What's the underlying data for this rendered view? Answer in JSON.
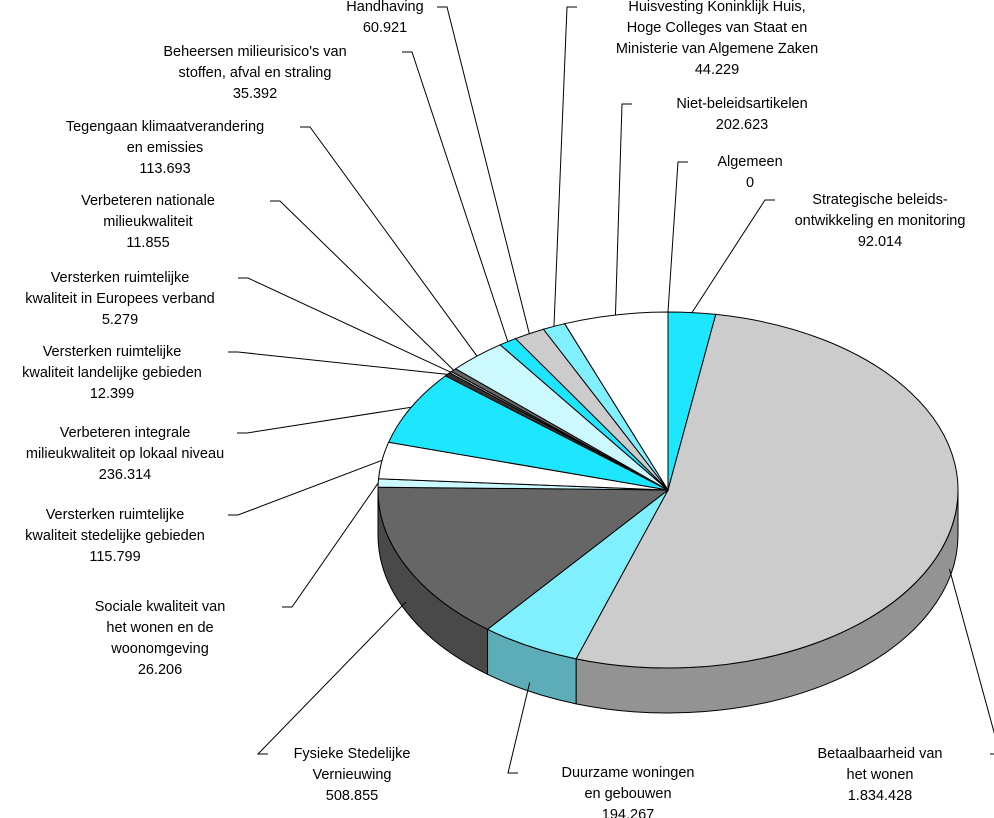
{
  "chart_data": {
    "type": "pie3d",
    "categories": [
      [
        "Strategische beleids-",
        "ontwikkeling en monitoring"
      ],
      [
        "Betaalbaarheid van",
        "het wonen"
      ],
      [
        "Duurzame woningen",
        "en gebouwen"
      ],
      [
        "Fysieke Stedelijke",
        "Vernieuwing"
      ],
      [
        "Sociale kwaliteit van",
        "het wonen en de",
        "woonomgeving"
      ],
      [
        "Versterken ruimtelijke",
        "kwaliteit stedelijke gebieden"
      ],
      [
        "Verbeteren integrale",
        "milieukwaliteit op lokaal niveau"
      ],
      [
        "Versterken ruimtelijke",
        "kwaliteit landelijke gebieden"
      ],
      [
        "Versterken ruimtelijke",
        "kwaliteit in Europees verband"
      ],
      [
        "Verbeteren nationale",
        "milieukwaliteit"
      ],
      [
        "Tegengaan klimaatverandering",
        "en emissies"
      ],
      [
        "Beheersen milieurisico's van",
        "stoffen, afval en straling"
      ],
      [
        "Handhaving"
      ],
      [
        "Huisvesting Koninklijk Huis,",
        "Hoge Colleges van Staat en",
        "Ministerie van Algemene Zaken"
      ],
      [
        "Niet-beleidsartikelen"
      ],
      [
        "Algemeen"
      ]
    ],
    "values": [
      92014,
      1834428,
      194267,
      508855,
      26206,
      115799,
      236314,
      12399,
      5279,
      11855,
      113693,
      35392,
      60921,
      44229,
      202623,
      0
    ],
    "value_labels": [
      "92.014",
      "1.834.428",
      "194.267",
      "508.855",
      "26.206",
      "115.799",
      "236.314",
      "12.399",
      "5.279",
      "11.855",
      "113.693",
      "35.392",
      "60.921",
      "44.229",
      "202.623",
      "0"
    ],
    "colors": [
      "#1ee6ff",
      "#cccccc",
      "#80f0ff",
      "#666666",
      "#ccf8ff",
      "#ffffff",
      "#1ee6ff",
      "#333333",
      "#cccccc",
      "#666666",
      "#ccf8ff",
      "#1ee6ff",
      "#cccccc",
      "#80f0ff",
      "#ffffff",
      "#1ee6ff"
    ]
  }
}
